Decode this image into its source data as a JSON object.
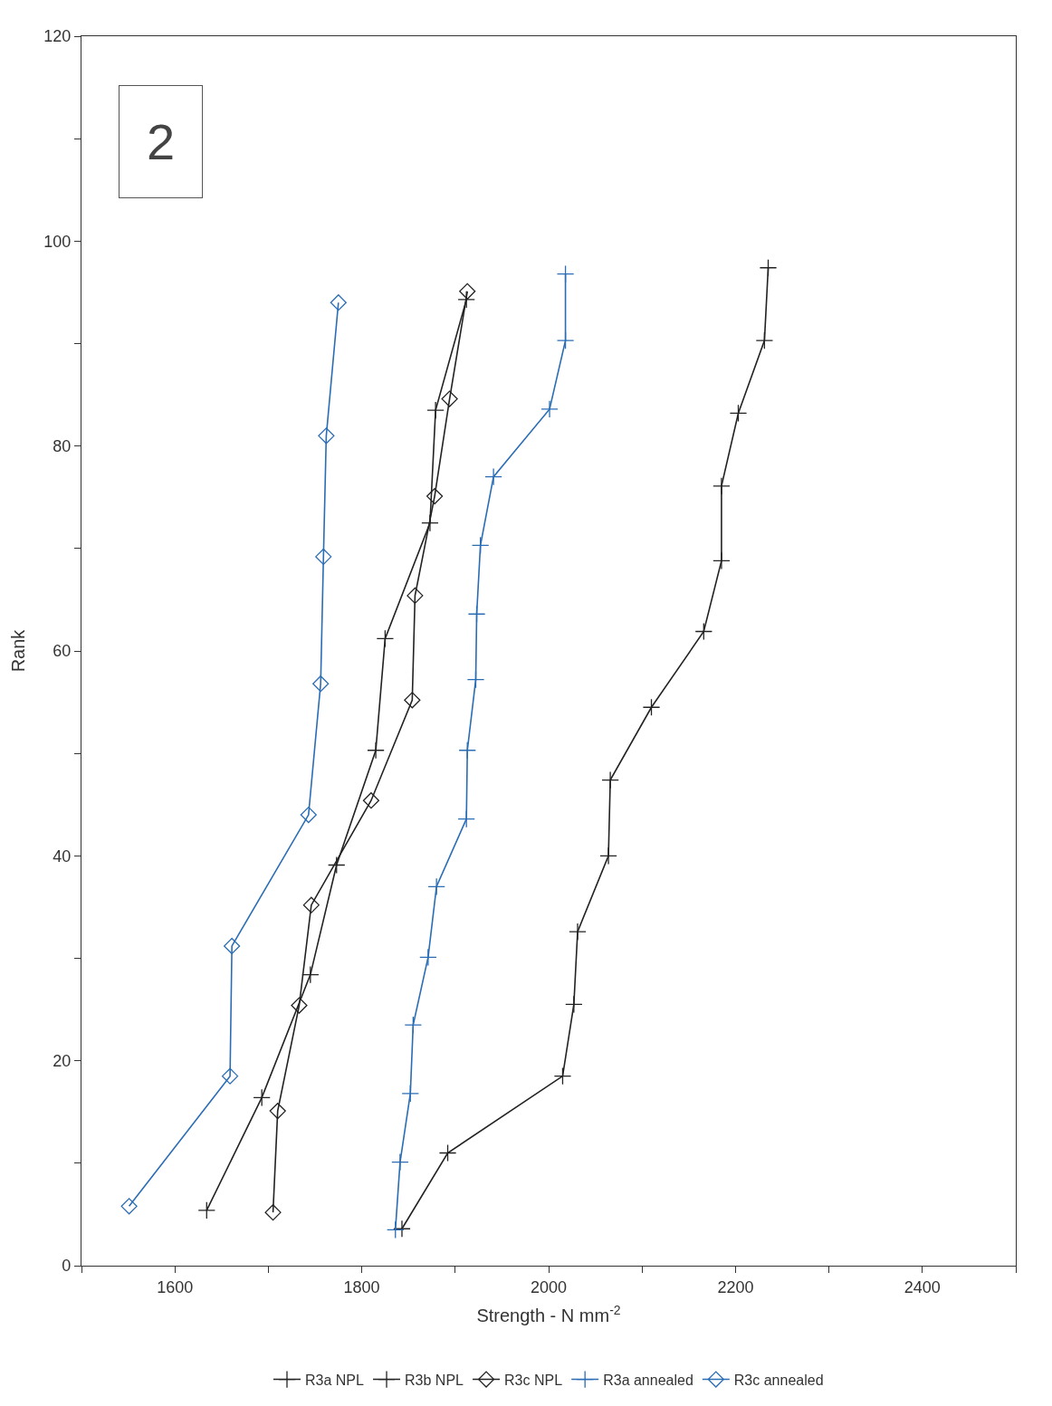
{
  "chart_data": {
    "type": "line",
    "xlabel": "Strength - N mm$^{-2}$",
    "ylabel": "Rank",
    "annotations": [
      "2"
    ],
    "xlim": [
      1500,
      2500
    ],
    "xticks": [
      {
        "value": 1500,
        "label": null
      },
      1600,
      {
        "value": 1700,
        "label": null
      },
      1800,
      {
        "value": 1900,
        "label": null
      },
      2000,
      {
        "value": 2100,
        "label": null
      },
      2200,
      {
        "value": 2300,
        "label": null
      },
      2400,
      {
        "value": 2500,
        "label": null
      }
    ],
    "ylim": [
      0,
      120
    ],
    "yticks": [
      0,
      {
        "value": 10,
        "label": null
      },
      20,
      {
        "value": 30,
        "label": null
      },
      40,
      {
        "value": 50,
        "label": null
      },
      60,
      {
        "value": 70,
        "label": null
      },
      80,
      {
        "value": 90,
        "label": null
      },
      100,
      {
        "value": 110,
        "label": null
      },
      120
    ],
    "legend": "bottom",
    "line_style": "solid",
    "series": [
      {
        "name": "R3a NPL",
        "color": "#222222",
        "marker": "cross",
        "x": [
          2235,
          2231,
          2203,
          2185,
          2185,
          2166,
          2110,
          2066,
          2064,
          2031,
          2027,
          2015,
          1892,
          1843
        ],
        "values": [
          97.4,
          90.3,
          83.2,
          76.1,
          68.8,
          61.9,
          54.5,
          47.4,
          40.0,
          32.6,
          25.5,
          18.5,
          11.0,
          3.6
        ]
      },
      {
        "name": "R3b NPL",
        "color": "#222222",
        "marker": "cross",
        "x": [
          1912,
          1879,
          1873,
          1825,
          1815,
          1773,
          1745,
          1693,
          1634
        ],
        "values": [
          94.3,
          83.5,
          72.5,
          61.2,
          50.3,
          39.1,
          28.4,
          16.4,
          5.4
        ]
      },
      {
        "name": "R3c NPL",
        "color": "#222222",
        "marker": "diamond",
        "x": [
          1913,
          1894,
          1878,
          1857,
          1854,
          1810,
          1746,
          1733,
          1710,
          1705
        ],
        "values": [
          95.1,
          84.6,
          75.1,
          65.4,
          55.2,
          45.4,
          35.2,
          25.4,
          15.1,
          5.2
        ]
      },
      {
        "name": "R3a annealed",
        "color": "#2a6db5",
        "marker": "cross",
        "x": [
          2018,
          2018,
          2001,
          1941,
          1927,
          1923,
          1922,
          1913,
          1912,
          1880,
          1871,
          1855,
          1852,
          1841,
          1836
        ],
        "values": [
          96.8,
          90.3,
          83.6,
          77.0,
          70.3,
          63.6,
          57.2,
          50.3,
          43.6,
          37.0,
          30.1,
          23.5,
          16.8,
          10.1,
          3.5
        ]
      },
      {
        "name": "R3c annealed",
        "color": "#2a6db5",
        "marker": "diamond",
        "x": [
          1775,
          1762,
          1759,
          1756,
          1743,
          1661,
          1659,
          1551
        ],
        "values": [
          94.0,
          81.0,
          69.2,
          56.8,
          44.0,
          31.2,
          18.5,
          5.8
        ]
      }
    ]
  }
}
